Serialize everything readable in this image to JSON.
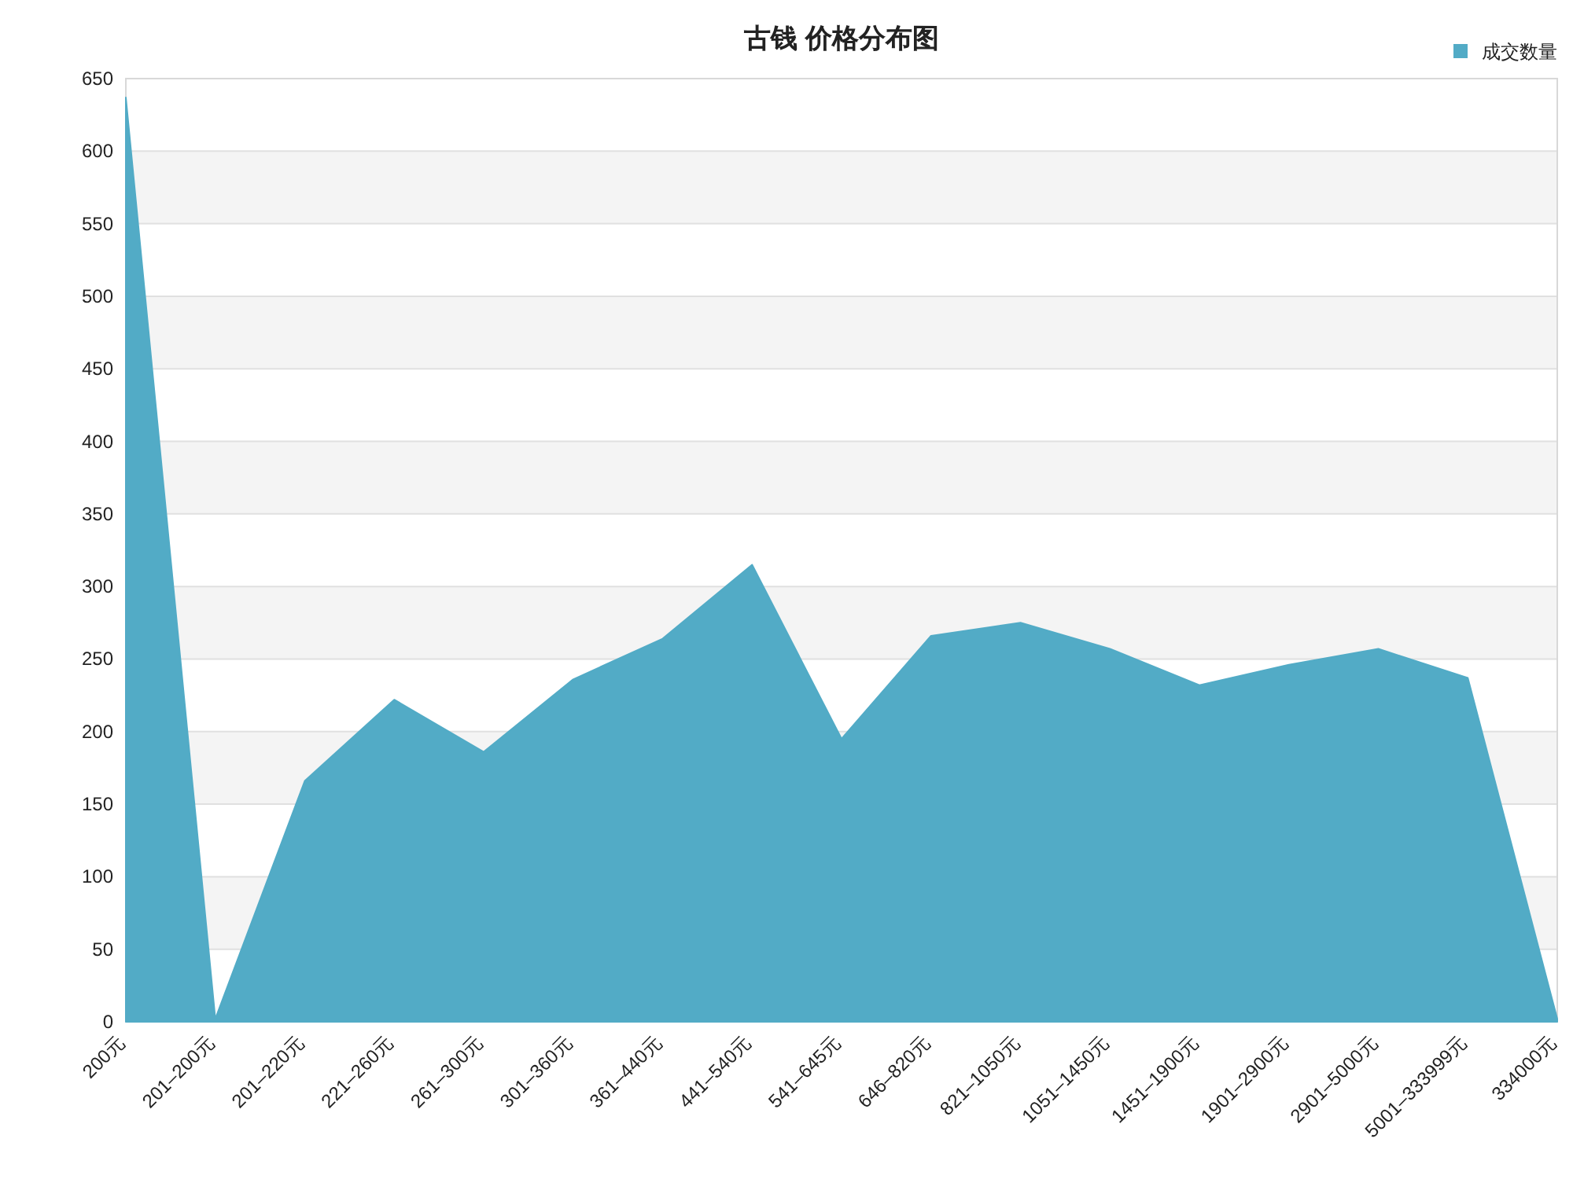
{
  "chart_data": {
    "type": "area",
    "title": "古钱 价格分布图",
    "categories": [
      "200元",
      "201–200元",
      "201–220元",
      "221–260元",
      "261–300元",
      "301–360元",
      "361–440元",
      "441–540元",
      "541–645元",
      "646–820元",
      "821–1050元",
      "1051–1450元",
      "1451–1900元",
      "1901–2900元",
      "2901–5000元",
      "5001–333999元",
      "334000元"
    ],
    "series": [
      {
        "name": "成交数量",
        "color": "#52abc6",
        "values": [
          637,
          2,
          166,
          222,
          186,
          236,
          264,
          315,
          195,
          266,
          275,
          257,
          232,
          246,
          257,
          237,
          2
        ]
      }
    ],
    "ylim": [
      0,
      650
    ],
    "yticks": [
      0,
      50,
      100,
      150,
      200,
      250,
      300,
      350,
      400,
      450,
      500,
      550,
      600,
      650
    ],
    "grid": "y",
    "legend": "top right"
  }
}
